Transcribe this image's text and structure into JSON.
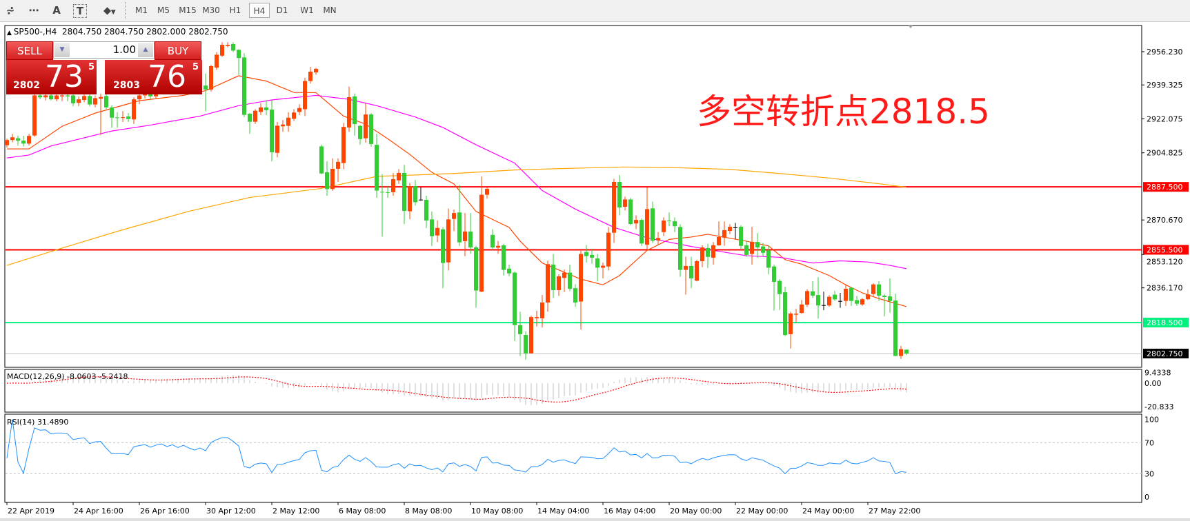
{
  "toolbar": {
    "icons": [
      "elliott-wave-icon",
      "fibonacci-fan-icon",
      "text-icon",
      "text-label-icon",
      "arrows-icon"
    ],
    "icon_glyphs": {
      "elliott": "⩫",
      "fib": "⋯",
      "text": "A",
      "label": "T",
      "arrows": "⬥"
    },
    "timeframes": [
      "M1",
      "M5",
      "M15",
      "M30",
      "H1",
      "H4",
      "D1",
      "W1",
      "MN"
    ],
    "active_timeframe": "H4"
  },
  "chart": {
    "header": "SP500-,H4  2804.750 2804.750 2802.000 2802.750",
    "annotation": "多空转折点2818.5",
    "colors": {
      "up": "#ff4500",
      "down": "#32cd32",
      "doji": "#000000",
      "ma_fast": "#ff4500",
      "ma_mid": "#ff00ff",
      "ma_slow": "#ffa500",
      "macd_hist": "#c0c0c0",
      "macd_signal": "#ff0000",
      "rsi": "#1e90ff"
    },
    "price_ticks": [
      "2956.230",
      "2939.325",
      "2922.075",
      "2904.825",
      "2870.670",
      "2853.120",
      "2836.170"
    ],
    "levels": [
      {
        "price": 2887.5,
        "label": "2887.500",
        "color": "#ff0000"
      },
      {
        "price": 2855.5,
        "label": "2855.500",
        "color": "#ff0000"
      },
      {
        "price": 2818.5,
        "label": "2818.500",
        "color": "#00f080"
      }
    ],
    "bid": {
      "price": 2802.75,
      "label": "2802.750"
    },
    "time_labels": [
      "22 Apr 2019",
      "24 Apr 16:00",
      "26 Apr 16:00",
      "30 Apr 12:00",
      "2 May 12:00",
      "6 May 08:00",
      "8 May 08:00",
      "10 May 08:00",
      "14 May 04:00",
      "16 May 04:00",
      "20 May 00:00",
      "22 May 00:00",
      "24 May 00:00",
      "27 May 22:00"
    ],
    "candles_ohlc": [
      [
        2908.7,
        2912,
        2907.5,
        2911.3
      ],
      [
        2911.3,
        2914.5,
        2910.1,
        2912.7
      ],
      [
        2912.2,
        2913.5,
        2908.5,
        2911
      ],
      [
        2911,
        2913.5,
        2908,
        2909.5
      ],
      [
        2909.5,
        2914.5,
        2908.5,
        2913.4
      ],
      [
        2913.6,
        2935,
        2913,
        2934
      ],
      [
        2934,
        2937,
        2932,
        2933
      ],
      [
        2933,
        2936,
        2931.5,
        2934
      ],
      [
        2934,
        2936,
        2931.5,
        2932
      ],
      [
        2932,
        2935.5,
        2931,
        2934
      ],
      [
        2933.5,
        2936.5,
        2931.1,
        2934
      ],
      [
        2934,
        2936,
        2931,
        2933.5
      ],
      [
        2934,
        2935,
        2928.5,
        2930
      ],
      [
        2930.2,
        2933.5,
        2928.5,
        2932
      ],
      [
        2931.7,
        2935,
        2930.5,
        2933.7
      ],
      [
        2933.7,
        2934.5,
        2928.5,
        2929.4
      ],
      [
        2929.4,
        2934,
        2928,
        2932.6
      ],
      [
        2932.3,
        2935,
        2913.9,
        2933.2
      ],
      [
        2933.7,
        2935,
        2927,
        2927.9
      ],
      [
        2927.9,
        2929,
        2917.5,
        2922.7
      ],
      [
        2922.8,
        2925.5,
        2917.5,
        2922.6
      ],
      [
        2922.6,
        2926,
        2920.5,
        2922.9
      ],
      [
        2923.3,
        2925,
        2920.5,
        2922
      ],
      [
        2921.8,
        2933,
        2919.5,
        2932
      ],
      [
        2932,
        2936,
        2929.5,
        2934
      ],
      [
        2934,
        2937,
        2932.5,
        2935.5
      ],
      [
        2935.5,
        2937,
        2932,
        2933.5
      ],
      [
        2933.5,
        2938,
        2932.5,
        2936.5
      ],
      [
        2936.5,
        2940,
        2935,
        2938.5
      ],
      [
        2938.5,
        2939.5,
        2935,
        2936.5
      ],
      [
        2936.5,
        2940.5,
        2935.5,
        2939
      ],
      [
        2939,
        2940,
        2935.5,
        2937
      ],
      [
        2937,
        2941.5,
        2936,
        2940
      ],
      [
        2940,
        2941,
        2936.5,
        2938
      ],
      [
        2938,
        2939.5,
        2935,
        2936.5
      ],
      [
        2936.5,
        2940.5,
        2935.5,
        2939
      ],
      [
        2939,
        2945.1,
        2925.9,
        2937
      ],
      [
        2937,
        2949.5,
        2936,
        2948.9
      ],
      [
        2948.1,
        2956,
        2947,
        2954.7
      ],
      [
        2954.2,
        2961,
        2953.5,
        2959.7
      ],
      [
        2959.1,
        2961,
        2958.5,
        2959.7
      ],
      [
        2960.1,
        2961,
        2956,
        2956.8
      ],
      [
        2957.2,
        2957.5,
        2944.5,
        2953
      ],
      [
        2953.3,
        2955.5,
        2923,
        2924.1
      ],
      [
        2924.7,
        2925,
        2914.5,
        2920.6
      ],
      [
        2920.6,
        2927,
        2919.5,
        2926.2
      ],
      [
        2925.6,
        2930,
        2924,
        2927.9
      ],
      [
        2927.9,
        2931.5,
        2924,
        2926.5
      ],
      [
        2926.8,
        2931.5,
        2900.5,
        2905.1
      ],
      [
        2904.8,
        2920.5,
        2902.5,
        2918.6
      ],
      [
        2918.3,
        2921.5,
        2915.5,
        2919.2
      ],
      [
        2918.5,
        2925.5,
        2915.5,
        2922.7
      ],
      [
        2922.1,
        2927,
        2921,
        2925.3
      ],
      [
        2925.6,
        2929.5,
        2924,
        2927.6
      ],
      [
        2927,
        2943,
        2923.5,
        2941.3
      ],
      [
        2941.3,
        2948.5,
        2940,
        2946.1
      ],
      [
        2945.7,
        2948,
        2944.5,
        2947.5
      ],
      [
        2908.1,
        2909,
        2894,
        2894.3
      ],
      [
        2894.9,
        2900.5,
        2883,
        2886.4
      ],
      [
        2886.4,
        2902,
        2885.5,
        2896.7
      ],
      [
        2896.7,
        2902,
        2890,
        2900.2
      ],
      [
        2899.6,
        2920,
        2896.5,
        2918
      ],
      [
        2917.7,
        2938.5,
        2915.5,
        2933.1
      ],
      [
        2933.5,
        2935,
        2913.5,
        2919.4
      ],
      [
        2918.5,
        2919,
        2909,
        2911.8
      ],
      [
        2912.2,
        2930,
        2910,
        2924.3
      ],
      [
        2924.3,
        2925,
        2908,
        2909.3
      ],
      [
        2908.9,
        2914.5,
        2882,
        2885.6
      ],
      [
        2885,
        2894,
        2862.2,
        2884.7
      ],
      [
        2884.8,
        2888,
        2882,
        2884.5
      ],
      [
        2884.8,
        2894.5,
        2883,
        2891.4
      ],
      [
        2890.8,
        2896.5,
        2889,
        2894.6
      ],
      [
        2894.6,
        2898.7,
        2868.6,
        2875.3
      ],
      [
        2875.1,
        2889.5,
        2871,
        2887.9
      ],
      [
        2887.9,
        2891,
        2878,
        2879.7
      ],
      [
        2881,
        2887.3,
        2880.5,
        2881
      ],
      [
        2880.9,
        2883,
        2866.5,
        2870.4
      ],
      [
        2870.97,
        2875,
        2857.5,
        2862.4
      ],
      [
        2862.8,
        2870.5,
        2859.5,
        2866.6
      ],
      [
        2865.9,
        2867,
        2836,
        2848.8
      ],
      [
        2849.1,
        2876.5,
        2845,
        2870.97
      ],
      [
        2871.2,
        2876,
        2865,
        2874.2
      ],
      [
        2874.5,
        2888.5,
        2857.5,
        2859.3
      ],
      [
        2859.9,
        2874.2,
        2852.3,
        2864.8
      ],
      [
        2864.8,
        2874.2,
        2853.5,
        2856.7
      ],
      [
        2856.7,
        2857.5,
        2826,
        2834.8
      ],
      [
        2834.2,
        2892.8,
        2834,
        2883.5
      ],
      [
        2883.5,
        2887.5,
        2881.5,
        2886.5
      ],
      [
        2863.1,
        2866,
        2855.5,
        2856.7
      ],
      [
        2856.6,
        2860,
        2853.5,
        2857.5
      ],
      [
        2857.8,
        2858.5,
        2842.5,
        2845.3
      ],
      [
        2845.9,
        2848,
        2842,
        2843.5
      ],
      [
        2843.9,
        2844.5,
        2809.1,
        2817.2
      ],
      [
        2817.2,
        2824,
        2801.5,
        2812.6
      ],
      [
        2812.2,
        2814,
        2799.7,
        2802.9
      ],
      [
        2802.9,
        2822,
        2802.9,
        2821.3
      ],
      [
        2820.7,
        2824.5,
        2816.5,
        2821.3
      ],
      [
        2820.7,
        2832.5,
        2816,
        2828.7
      ],
      [
        2828.7,
        2850,
        2824,
        2848.2
      ],
      [
        2848,
        2853.4,
        2831,
        2835
      ],
      [
        2835,
        2843,
        2832,
        2842
      ],
      [
        2841.2,
        2845.5,
        2834,
        2843.9
      ],
      [
        2843.9,
        2848,
        2834.5,
        2835.7
      ],
      [
        2836,
        2838,
        2826.5,
        2828.7
      ],
      [
        2829.2,
        2855,
        2814.9,
        2853.4
      ],
      [
        2854.4,
        2858,
        2849,
        2852.3
      ],
      [
        2852.9,
        2856,
        2848.5,
        2851.5
      ],
      [
        2851.1,
        2853.5,
        2839.5,
        2846.4
      ],
      [
        2846.4,
        2849,
        2841,
        2847.4
      ],
      [
        2847,
        2867,
        2845,
        2864.2
      ],
      [
        2864.2,
        2891.6,
        2859,
        2890
      ],
      [
        2890,
        2893.5,
        2873,
        2877
      ],
      [
        2877.4,
        2882.5,
        2875.5,
        2881.1
      ],
      [
        2881.1,
        2882,
        2868,
        2868.6
      ],
      [
        2868.9,
        2873,
        2866,
        2870.7
      ],
      [
        2870.7,
        2871.5,
        2857.5,
        2858.7
      ],
      [
        2858.1,
        2887.3,
        2855.5,
        2876.2
      ],
      [
        2876.6,
        2880,
        2859,
        2860.1
      ],
      [
        2860.3,
        2864.5,
        2858,
        2861.5
      ],
      [
        2864.5,
        2872,
        2862.5,
        2870.4
      ],
      [
        2870.4,
        2874.5,
        2867.5,
        2870.2
      ],
      [
        2870,
        2872,
        2864.5,
        2867.5
      ],
      [
        2867.1,
        2868.5,
        2841.8,
        2845.3
      ],
      [
        2845.3,
        2852,
        2832.7,
        2847.3
      ],
      [
        2847.3,
        2852,
        2836,
        2841
      ],
      [
        2839.8,
        2850.5,
        2839.4,
        2849.7
      ],
      [
        2849.7,
        2857.8,
        2846.7,
        2856.7
      ],
      [
        2856.4,
        2858.5,
        2846.3,
        2851.9
      ],
      [
        2851.5,
        2859.5,
        2848,
        2857.8
      ],
      [
        2857.8,
        2869.9,
        2857.5,
        2862
      ],
      [
        2861.7,
        2869.9,
        2857.5,
        2865.5
      ],
      [
        2865.1,
        2868.5,
        2863.5,
        2867.2
      ],
      [
        2866.9,
        2869.2,
        2861,
        2866.9
      ],
      [
        2867.2,
        2868,
        2856,
        2857.5
      ],
      [
        2857.8,
        2860,
        2852,
        2852.9
      ],
      [
        2853.4,
        2867.2,
        2848,
        2859.5
      ],
      [
        2859.5,
        2864,
        2851.5,
        2856.7
      ],
      [
        2857.2,
        2859,
        2852,
        2854
      ],
      [
        2855.2,
        2857.5,
        2843,
        2846.4
      ],
      [
        2847,
        2848,
        2824.6,
        2839.2
      ],
      [
        2839.7,
        2840.5,
        2824.9,
        2833
      ],
      [
        2833.9,
        2836.7,
        2811.5,
        2812.2
      ],
      [
        2812.6,
        2824,
        2805.3,
        2823.1
      ],
      [
        2822.5,
        2825.5,
        2818.4,
        2823
      ],
      [
        2823.4,
        2830,
        2823,
        2827.7
      ],
      [
        2827.6,
        2835.5,
        2826.5,
        2834.5
      ],
      [
        2834.4,
        2839.5,
        2831,
        2832.2
      ],
      [
        2832.5,
        2841.6,
        2820.5,
        2827.2
      ],
      [
        2827.4,
        2834.2,
        2824.8,
        2827.4
      ],
      [
        2827.2,
        2832.5,
        2826.5,
        2831.6
      ],
      [
        2832.7,
        2834.6,
        2829.5,
        2830.3
      ],
      [
        2829.5,
        2833.6,
        2826,
        2829.5
      ],
      [
        2829.5,
        2838,
        2827,
        2835.7
      ],
      [
        2836.2,
        2836.5,
        2827,
        2829.5
      ],
      [
        2829.9,
        2832,
        2827,
        2828.1
      ],
      [
        2827.7,
        2831,
        2827,
        2830.4
      ],
      [
        2830.4,
        2835.5,
        2830,
        2832.8
      ],
      [
        2833,
        2838.5,
        2832,
        2837.9
      ],
      [
        2837.9,
        2839.5,
        2829.5,
        2832.2
      ],
      [
        2832.2,
        2833,
        2821.7,
        2831.5
      ],
      [
        2831.8,
        2841,
        2823.5,
        2829.5
      ],
      [
        2829.7,
        2833.2,
        2801.5,
        2801.5
      ],
      [
        2801.5,
        2806.6,
        2800,
        2805
      ],
      [
        2804.75,
        2804.75,
        2802,
        2802.75
      ]
    ],
    "ma_fast": [
      [
        0,
        2906.8
      ],
      [
        4,
        2906.8
      ],
      [
        10,
        2918.3
      ],
      [
        16,
        2925
      ],
      [
        24,
        2931.3
      ],
      [
        32,
        2934
      ],
      [
        36,
        2936.4
      ],
      [
        42,
        2944
      ],
      [
        47,
        2941.3
      ],
      [
        52,
        2935.5
      ],
      [
        56,
        2935.4
      ],
      [
        61,
        2923.5
      ],
      [
        65,
        2919.4
      ],
      [
        69,
        2912
      ],
      [
        73,
        2904
      ],
      [
        77,
        2894.9
      ],
      [
        81,
        2889
      ],
      [
        85,
        2875
      ],
      [
        91,
        2866.9
      ],
      [
        93,
        2859.9
      ],
      [
        97,
        2848.8
      ],
      [
        101,
        2844.1
      ],
      [
        104,
        2840.6
      ],
      [
        108,
        2837.7
      ],
      [
        111,
        2842.4
      ],
      [
        116,
        2855.2
      ],
      [
        120,
        2860.8
      ],
      [
        124,
        2862
      ],
      [
        127,
        2863.4
      ],
      [
        134,
        2859.9
      ],
      [
        138,
        2857.5
      ],
      [
        141,
        2850.5
      ],
      [
        144,
        2848.2
      ],
      [
        149,
        2842.4
      ],
      [
        152,
        2837.7
      ],
      [
        155,
        2833.6
      ],
      [
        158,
        2830.7
      ],
      [
        163,
        2826.6
      ]
    ],
    "ma_mid": [
      [
        0,
        2902.2
      ],
      [
        4,
        2903.7
      ],
      [
        8,
        2908.3
      ],
      [
        19,
        2915.9
      ],
      [
        26,
        2918.9
      ],
      [
        35,
        2923.5
      ],
      [
        42,
        2928.8
      ],
      [
        48,
        2931.7
      ],
      [
        56,
        2934
      ],
      [
        62,
        2932
      ],
      [
        67,
        2928.8
      ],
      [
        74,
        2923
      ],
      [
        79,
        2917.7
      ],
      [
        85,
        2908.9
      ],
      [
        92,
        2899.6
      ],
      [
        97,
        2885.6
      ],
      [
        103,
        2876.2
      ],
      [
        110,
        2866.9
      ],
      [
        116,
        2861.6
      ],
      [
        124,
        2857.2
      ],
      [
        128,
        2855.2
      ],
      [
        134,
        2852.5
      ],
      [
        140,
        2851.7
      ],
      [
        146,
        2848.8
      ],
      [
        151,
        2849.9
      ],
      [
        156,
        2849.3
      ],
      [
        160,
        2847.6
      ],
      [
        163,
        2845.9
      ]
    ],
    "ma_slow": [
      [
        0,
        2847.6
      ],
      [
        10,
        2856.4
      ],
      [
        21,
        2865.7
      ],
      [
        33,
        2875.1
      ],
      [
        44,
        2882.1
      ],
      [
        57,
        2886.7
      ],
      [
        67,
        2892.8
      ],
      [
        81,
        2894.3
      ],
      [
        92,
        2896.1
      ],
      [
        103,
        2897
      ],
      [
        112,
        2897.6
      ],
      [
        122,
        2897.2
      ],
      [
        131,
        2896.4
      ],
      [
        140,
        2894.3
      ],
      [
        149,
        2892
      ],
      [
        158,
        2889.1
      ],
      [
        163,
        2887.3
      ]
    ]
  },
  "macd": {
    "label": "MACD(12,26,9) -8.0603 -5.2418",
    "ticks": [
      "9.4338",
      "0.00",
      "-20.833"
    ],
    "tick_values": [
      9.4338,
      0,
      -20.833
    ]
  },
  "rsi": {
    "label": "RSI(14) 31.4890",
    "ticks": [
      "100",
      "70",
      "30",
      "0"
    ],
    "tick_values": [
      100,
      70,
      30,
      0
    ]
  },
  "trade_panel": {
    "sell_label": "SELL",
    "buy_label": "BUY",
    "lot": "1.00",
    "sell_small": "2802",
    "sell_big": "73",
    "sell_sup": "5",
    "buy_small": "2803",
    "buy_big": "76",
    "buy_sup": "5"
  }
}
